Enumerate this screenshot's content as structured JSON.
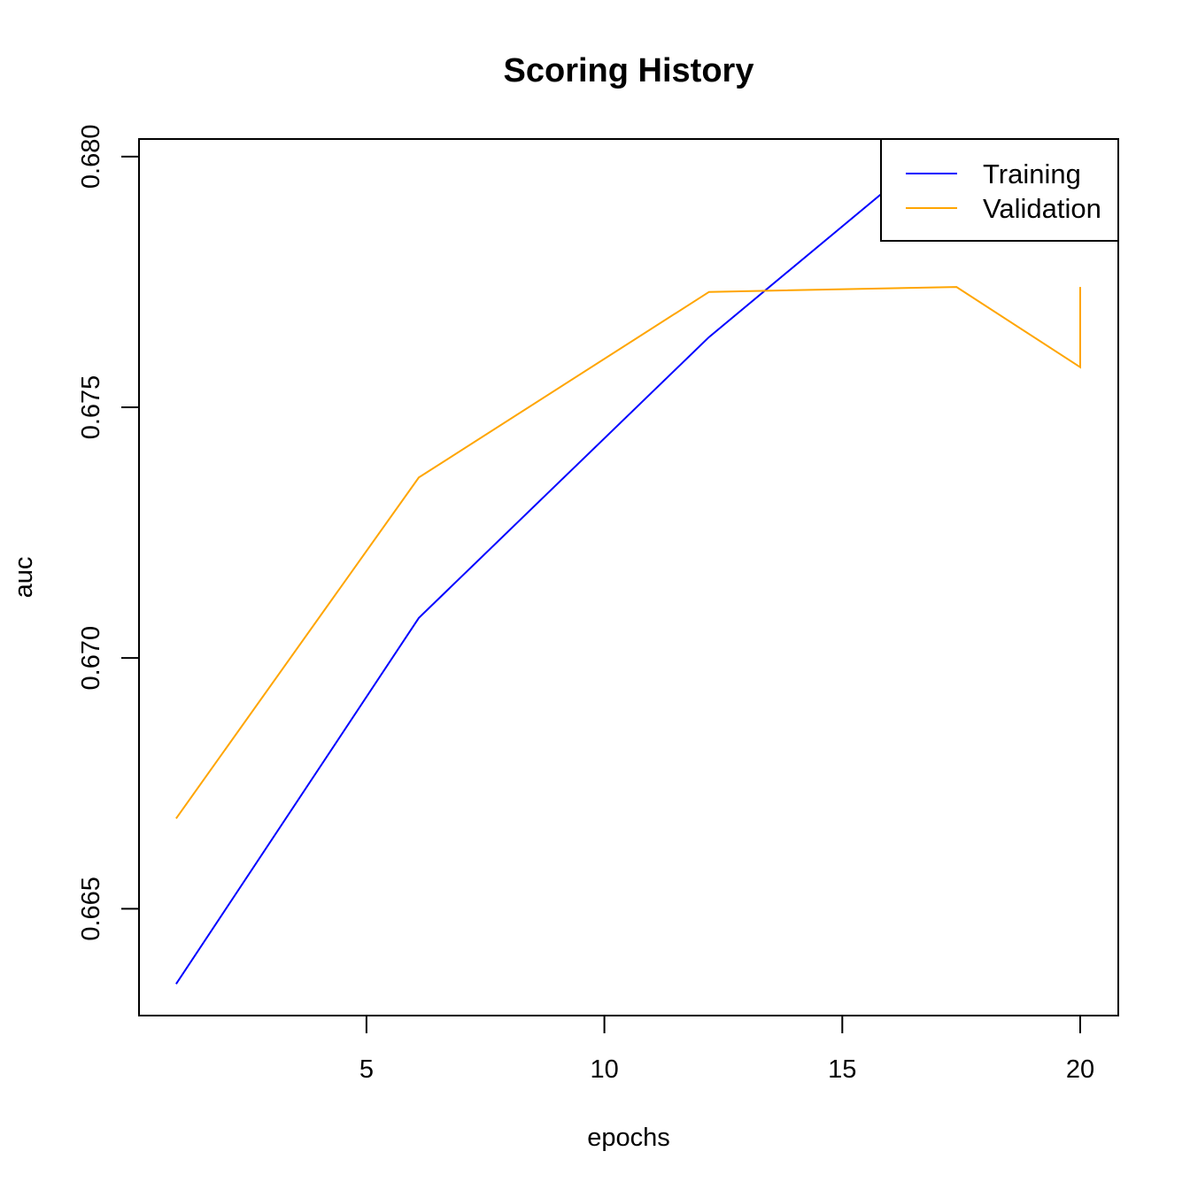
{
  "chart_data": {
    "type": "line",
    "title": "Scoring History",
    "xlabel": "epochs",
    "ylabel": "auc",
    "xlim": [
      0.22,
      20.8
    ],
    "ylim": [
      0.66287,
      0.68035
    ],
    "x_ticks": [
      5,
      10,
      15,
      20
    ],
    "x_tick_labels": [
      "5",
      "10",
      "15",
      "20"
    ],
    "y_ticks": [
      0.665,
      0.67,
      0.675,
      0.68
    ],
    "y_tick_labels": [
      "0.665",
      "0.670",
      "0.675",
      "0.680"
    ],
    "grid": false,
    "legend_position": "top-right",
    "series": [
      {
        "name": "Training",
        "color": "#0000ff",
        "x": [
          1.0,
          6.1,
          12.2,
          17.4,
          20.0
        ],
        "y": [
          0.6635,
          0.6708,
          0.6764,
          0.6805,
          0.6815
        ]
      },
      {
        "name": "Validation",
        "color": "#ffa500",
        "x": [
          1.0,
          6.1,
          12.2,
          17.4,
          20.0,
          20.0
        ],
        "y": [
          0.6668,
          0.6736,
          0.6773,
          0.6774,
          0.6758,
          0.6774
        ]
      }
    ]
  }
}
